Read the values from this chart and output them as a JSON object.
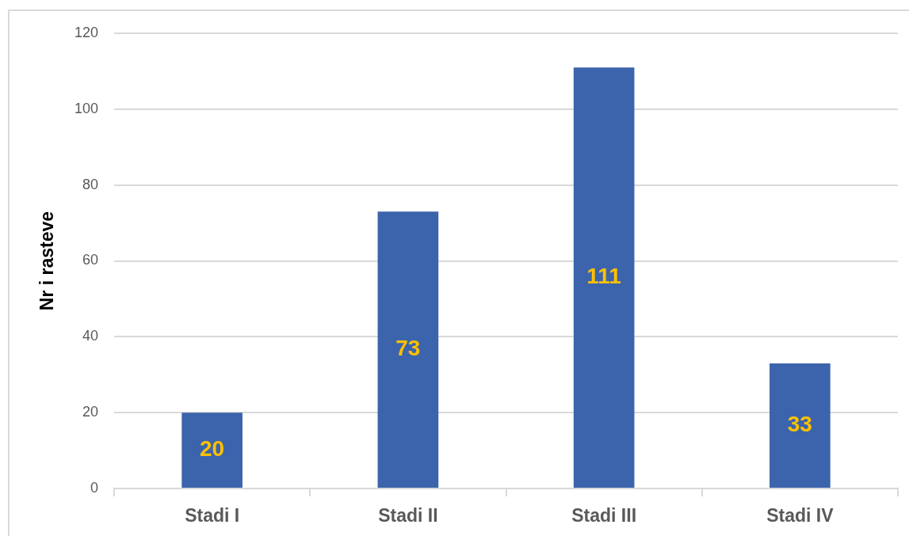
{
  "chart_data": {
    "type": "bar",
    "ylabel": "Nr i rasteve",
    "categories": [
      "Stadi I",
      "Stadi II",
      "Stadi III",
      "Stadi IV"
    ],
    "values": [
      20,
      73,
      111,
      33
    ],
    "color": "#3c64ac",
    "ylim": [
      0,
      120
    ],
    "yticks": [
      0,
      20,
      40,
      60,
      80,
      100,
      120
    ],
    "grid": "y",
    "data_labels": true
  }
}
